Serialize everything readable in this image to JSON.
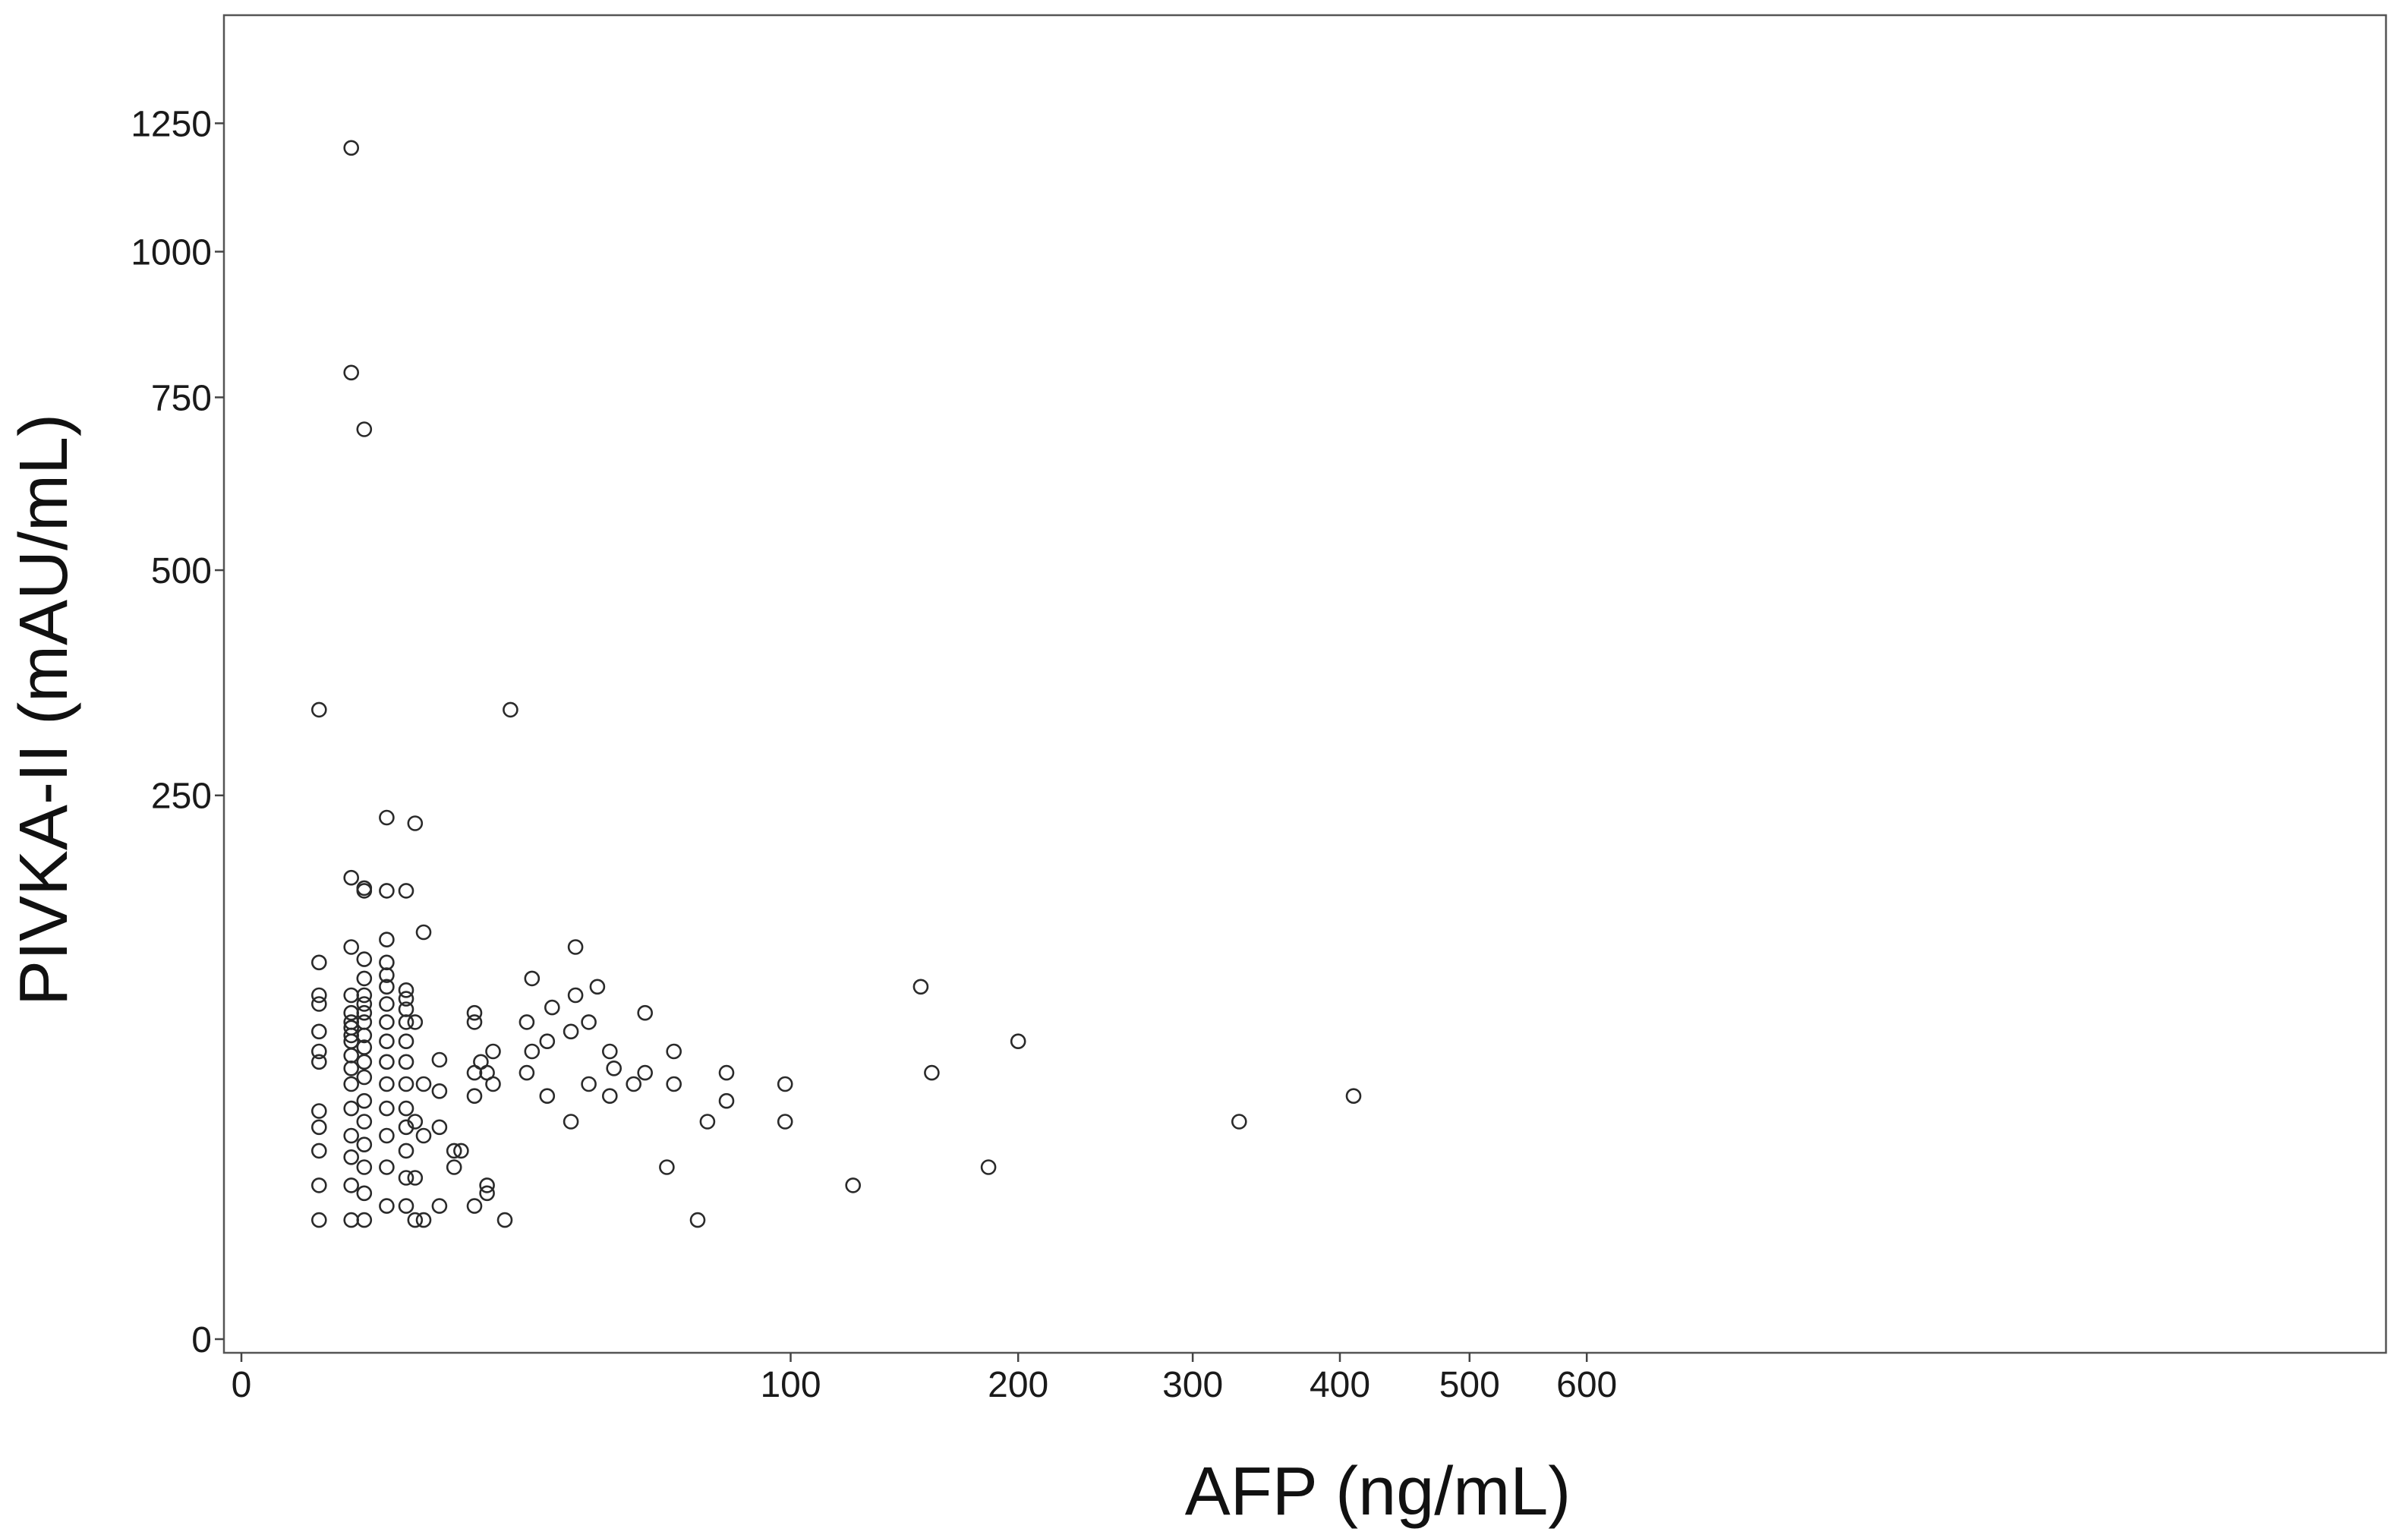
{
  "chart_data": {
    "type": "scatter",
    "xlabel": "AFP (ng/mL)",
    "ylabel": "PIVKA-II (mAU/mL)",
    "x_scale": "sqrt",
    "y_scale": "sqrt",
    "x_ticks": [
      0,
      100,
      200,
      300,
      400,
      500,
      600
    ],
    "y_ticks": [
      0,
      250,
      500,
      750,
      1000,
      1250
    ],
    "xlim": [
      0,
      615
    ],
    "ylim": [
      0,
      1450
    ],
    "grid": false,
    "legend": "none",
    "series": [
      {
        "x": [
          2,
          2,
          2,
          2,
          2,
          2,
          2,
          2,
          2,
          2,
          2,
          2,
          4,
          4,
          4,
          4,
          4,
          4,
          4,
          4,
          4,
          4,
          4,
          4,
          4,
          4,
          4,
          4,
          4,
          4,
          5,
          5,
          5,
          5,
          5,
          5,
          5,
          5,
          5,
          5,
          5,
          5,
          5,
          5,
          5,
          5,
          5,
          5,
          5,
          7,
          7,
          7,
          7,
          7,
          7,
          7,
          7,
          7,
          7,
          7,
          7,
          7,
          7,
          7,
          9,
          9,
          9,
          9,
          9,
          9,
          9,
          9,
          9,
          9,
          9,
          9,
          9,
          10,
          10,
          10,
          10,
          10,
          11,
          11,
          11,
          11,
          13,
          13,
          13,
          13,
          15,
          15,
          16,
          18,
          18,
          18,
          18,
          18,
          19,
          20,
          20,
          20,
          21,
          21,
          23,
          24,
          27,
          27,
          28,
          28,
          31,
          31,
          32,
          36,
          36,
          37,
          37,
          40,
          40,
          42,
          45,
          45,
          46,
          51,
          54,
          54,
          60,
          62,
          62,
          69,
          72,
          78,
          78,
          98,
          98,
          124,
          153,
          158,
          185,
          200,
          330,
          410
        ],
        "y": [
          12,
          20,
          30,
          38,
          44,
          65,
          70,
          80,
          95,
          100,
          120,
          335,
          12,
          20,
          28,
          35,
          45,
          55,
          62,
          68,
          75,
          78,
          82,
          85,
          90,
          100,
          130,
          180,
          1200,
          790,
          12,
          18,
          25,
          32,
          40,
          48,
          58,
          65,
          72,
          78,
          85,
          90,
          95,
          100,
          110,
          122,
          170,
          172,
          700,
          15,
          25,
          35,
          45,
          55,
          65,
          75,
          85,
          95,
          105,
          112,
          120,
          135,
          170,
          230,
          15,
          22,
          30,
          38,
          45,
          55,
          65,
          75,
          85,
          92,
          98,
          103,
          170,
          12,
          22,
          40,
          85,
          225,
          12,
          35,
          55,
          140,
          15,
          38,
          52,
          66,
          25,
          30,
          30,
          15,
          50,
          60,
          85,
          90,
          65,
          20,
          18,
          60,
          70,
          55,
          12,
          335,
          60,
          85,
          110,
          70,
          50,
          75,
          93,
          40,
          80,
          100,
          130,
          55,
          85,
          105,
          50,
          70,
          62,
          55,
          60,
          90,
          25,
          55,
          70,
          12,
          40,
          60,
          48,
          55,
          40,
          20,
          105,
          60,
          25,
          75,
          40,
          50
        ]
      }
    ]
  }
}
